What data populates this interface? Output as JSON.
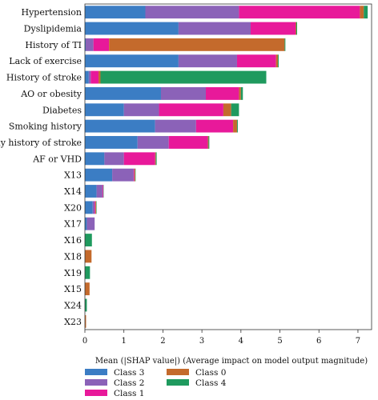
{
  "chart_data": {
    "type": "bar",
    "orientation": "horizontal",
    "stacked": true,
    "categories": [
      "Hypertension",
      "Dyslipidemia",
      "History of TI",
      "Lack of exercise",
      "History of stroke",
      "AO or obesity",
      "Diabetes",
      "Smoking history",
      "Family history of stroke",
      "AF or VHD",
      "X13",
      "X14",
      "X20",
      "X17",
      "X16",
      "X18",
      "X19",
      "X15",
      "X24",
      "X23"
    ],
    "series": [
      {
        "name": "Class 3",
        "color": "#3b7dc4",
        "values": [
          1.55,
          2.4,
          0.02,
          2.4,
          0.1,
          1.95,
          1.0,
          1.8,
          1.35,
          0.5,
          0.7,
          0.3,
          0.2,
          0.05,
          0,
          0,
          0,
          0,
          0,
          0
        ]
      },
      {
        "name": "Class 2",
        "color": "#8b62b8",
        "values": [
          2.4,
          1.85,
          0.2,
          1.5,
          0.05,
          1.15,
          0.9,
          1.05,
          0.8,
          0.5,
          0.55,
          0.15,
          0.05,
          0.2,
          0,
          0,
          0,
          0,
          0,
          0
        ]
      },
      {
        "name": "Class 1",
        "color": "#e8199a",
        "values": [
          3.1,
          1.15,
          0.4,
          1.0,
          0.2,
          0.85,
          1.65,
          0.95,
          1.0,
          0.8,
          0.02,
          0.02,
          0.02,
          0,
          0,
          0,
          0,
          0,
          0,
          0
        ]
      },
      {
        "name": "Class 0",
        "color": "#c46a2c",
        "values": [
          0.1,
          0.02,
          4.5,
          0.05,
          0.05,
          0.05,
          0.2,
          0.1,
          0.02,
          0.02,
          0.02,
          0,
          0.02,
          0,
          0,
          0.17,
          0,
          0.12,
          0,
          0.03
        ]
      },
      {
        "name": "Class 4",
        "color": "#1f9a5e",
        "values": [
          0.1,
          0.02,
          0.02,
          0.02,
          4.25,
          0.05,
          0.2,
          0.02,
          0.02,
          0.02,
          0.01,
          0.01,
          0.01,
          0,
          0.18,
          0,
          0.13,
          0,
          0.05,
          0
        ]
      }
    ],
    "xlabel": "Mean (|SHAP value|) (Average impact on model output magnitude)",
    "xticks": [
      0,
      1,
      2,
      3,
      4,
      5,
      6,
      7
    ],
    "xlim": [
      0,
      7.35
    ],
    "legend": {
      "position": "bottom",
      "columns": [
        [
          "Class 3",
          "Class 2",
          "Class 1"
        ],
        [
          "Class 0",
          "Class 4"
        ]
      ]
    },
    "grid": false
  }
}
